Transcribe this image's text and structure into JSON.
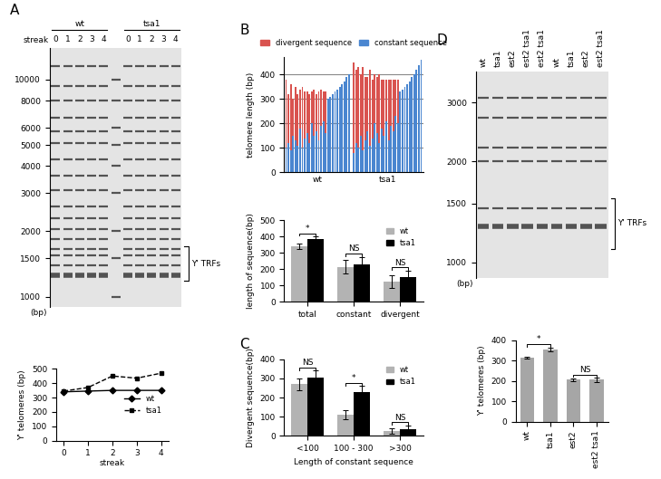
{
  "chart_data": [
    {
      "type": "gel",
      "title": "A",
      "categories": [
        "0",
        "1",
        "2",
        "3",
        "4",
        null,
        "0",
        "1",
        "2",
        "3",
        "4"
      ],
      "groups": [
        {
          "name": "wt",
          "lanes": [
            0,
            4
          ]
        },
        {
          "name": "tsa1",
          "lanes": [
            6,
            10
          ]
        }
      ],
      "row_label": "streak",
      "unit_label": "(bp)",
      "log": "y",
      "ylim": [
        900,
        14000
      ],
      "yticks": [
        1000,
        1500,
        2000,
        3000,
        4000,
        5000,
        6000,
        8000,
        10000
      ],
      "bands": [
        1250,
        1400,
        1550,
        1650,
        1850,
        2050,
        2300,
        2600,
        3100,
        3600,
        4300,
        5100,
        5800,
        6700,
        8000,
        9300,
        11500
      ],
      "bracket": {
        "label": "Y' TRFs",
        "range": [
          1180,
          1700
        ]
      }
    },
    {
      "type": "line",
      "x": [
        0,
        1,
        2,
        3,
        4
      ],
      "xlabel": "streak",
      "ylabel": "Y' telomeres (bp)",
      "xlim": [
        -0.3,
        4.3
      ],
      "xticks": [
        0,
        1,
        2,
        3,
        4
      ],
      "ylim": [
        0,
        500
      ],
      "yticks": [
        0,
        100,
        200,
        300,
        400,
        500
      ],
      "legend": "center right",
      "series": [
        {
          "name": "wt",
          "color": "#000000",
          "marker": "D",
          "line_style": "solid",
          "values": [
            340,
            345,
            350,
            350,
            350
          ]
        },
        {
          "name": "tsa1",
          "color": "#000000",
          "marker": "s",
          "line_style": "dashed",
          "values": [
            345,
            370,
            450,
            435,
            470
          ]
        }
      ]
    },
    {
      "type": "bar",
      "title": "B",
      "stacked": true,
      "grid": true,
      "legend": "upper center",
      "ylabel": "telomere length (bp)",
      "ylim": [
        0,
        470
      ],
      "yticks": [
        0,
        100,
        200,
        300,
        400
      ],
      "categories": [
        null,
        null,
        null,
        null,
        null,
        null,
        null,
        null,
        null,
        null,
        null,
        null,
        null,
        null,
        null,
        null,
        null,
        null,
        null,
        null,
        null,
        null,
        null,
        null,
        null,
        null,
        null,
        null,
        null,
        null,
        null,
        null,
        null,
        null,
        null,
        null,
        null,
        null,
        null,
        null,
        null,
        null,
        null,
        null,
        null,
        null,
        null,
        null,
        null,
        null,
        null,
        null,
        null,
        null,
        null,
        null,
        null,
        null,
        null
      ],
      "groups": [
        {
          "name": "wt",
          "lanes": [
            0,
            27
          ]
        },
        {
          "name": "tsa1",
          "lanes": [
            29,
            58
          ]
        }
      ],
      "series": [
        {
          "name": "divergent sequence",
          "color": "#d9534f",
          "values": [
            280,
            200,
            270,
            150,
            220,
            210,
            160,
            250,
            190,
            170,
            200,
            130,
            190,
            150,
            200,
            150,
            120,
            170,
            0,
            0,
            0,
            0,
            0,
            0,
            0,
            0,
            0,
            0,
            null,
            370,
            300,
            330,
            250,
            340,
            260,
            220,
            310,
            240,
            200,
            230,
            280,
            200,
            230,
            170,
            250,
            190,
            210,
            150,
            180,
            0,
            0,
            0,
            0,
            0,
            0,
            0,
            0,
            0,
            0
          ]
        },
        {
          "name": "constant sequence",
          "color": "#4a86d0",
          "values": [
            100,
            120,
            90,
            150,
            130,
            110,
            180,
            100,
            140,
            160,
            120,
            200,
            150,
            170,
            130,
            190,
            210,
            160,
            300,
            310,
            320,
            330,
            340,
            350,
            360,
            370,
            390,
            400,
            null,
            80,
            120,
            100,
            150,
            90,
            130,
            170,
            110,
            140,
            200,
            160,
            120,
            180,
            150,
            210,
            130,
            190,
            170,
            230,
            200,
            330,
            340,
            350,
            360,
            370,
            390,
            400,
            420,
            440,
            460
          ]
        }
      ]
    },
    {
      "type": "bar",
      "ylabel": "length of sequence(bp)",
      "legend": "upper right",
      "categories": [
        "total",
        "constant",
        "divergent"
      ],
      "ylim": [
        0,
        500
      ],
      "yticks": [
        0,
        100,
        200,
        300,
        400,
        500
      ],
      "series": [
        {
          "name": "wt",
          "color": "#b3b3b3",
          "values": [
            340,
            215,
            125
          ],
          "errors": [
            15,
            40,
            40
          ]
        },
        {
          "name": "tsa1",
          "color": "#000000",
          "values": [
            385,
            230,
            150
          ],
          "errors": [
            15,
            45,
            40
          ]
        }
      ],
      "significance": [
        {
          "label": "*",
          "categories": [
            "total"
          ]
        },
        {
          "label": "NS",
          "categories": [
            "constant"
          ]
        },
        {
          "label": "NS",
          "categories": [
            "divergent"
          ]
        }
      ]
    },
    {
      "type": "bar",
      "title": "C",
      "ylabel": "Divergent sequence(bp)",
      "xlabel": "Length of constant sequence",
      "legend": "upper right",
      "categories": [
        "<100",
        "100 - 300",
        ">300"
      ],
      "ylim": [
        0,
        400
      ],
      "yticks": [
        0,
        100,
        200,
        300,
        400
      ],
      "series": [
        {
          "name": "wt",
          "color": "#b3b3b3",
          "values": [
            270,
            110,
            25
          ],
          "errors": [
            30,
            25,
            15
          ]
        },
        {
          "name": "tsa1",
          "color": "#000000",
          "values": [
            305,
            230,
            35
          ],
          "errors": [
            35,
            30,
            20
          ]
        }
      ],
      "significance": [
        {
          "label": "NS",
          "categories": [
            "<100"
          ]
        },
        {
          "label": "*",
          "categories": [
            "100 - 300"
          ]
        },
        {
          "label": "NS",
          "categories": [
            ">300"
          ]
        }
      ]
    },
    {
      "type": "gel",
      "title": "D",
      "categories": [
        "wt",
        "tsa1",
        "est2",
        "est2 tsa1",
        "est2 tsa1",
        "wt",
        "tsa1",
        "est2",
        "est2 tsa1"
      ],
      "unit_label": "(bp)",
      "log": "y",
      "ylim": [
        900,
        3700
      ],
      "yticks": [
        1000,
        1500,
        2000,
        3000
      ],
      "bands": [
        1280,
        1450,
        2000,
        2200,
        2700,
        3100
      ],
      "bracket": {
        "label": "Y' TRFs",
        "range": [
          1100,
          1550
        ]
      }
    },
    {
      "type": "bar",
      "ylabel": "Y' telomeres (bp)",
      "categories": [
        "wt",
        "tsa1",
        "est2",
        "est2 tsa1"
      ],
      "ylim": [
        0,
        400
      ],
      "yticks": [
        0,
        100,
        200,
        300,
        400
      ],
      "color": "#a6a6a6",
      "values": [
        315,
        355,
        205,
        205
      ],
      "errors": [
        5,
        8,
        5,
        10
      ],
      "significance": [
        {
          "label": "*",
          "categories": [
            "wt",
            "tsa1"
          ]
        },
        {
          "label": "NS",
          "categories": [
            "est2",
            "est2 tsa1"
          ]
        }
      ]
    }
  ]
}
